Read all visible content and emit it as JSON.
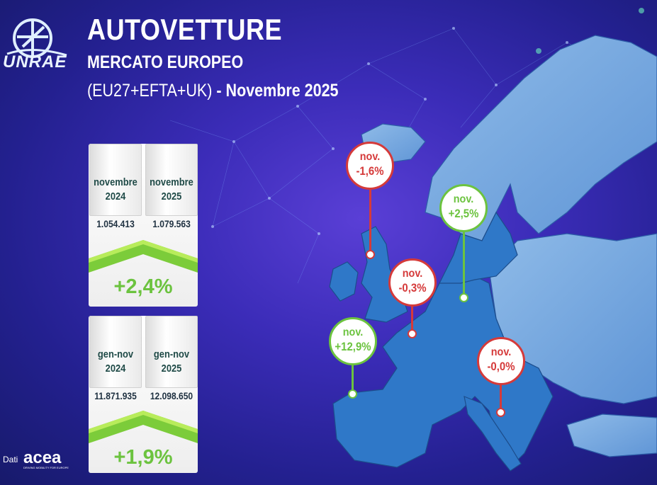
{
  "header": {
    "title": "AUTOVETTURE",
    "subtitle": "MERCATO EUROPEO",
    "scope": "(EU27+EFTA+UK)",
    "separator": " - ",
    "period": "Novembre 2025"
  },
  "logo": {
    "text": "UNRAE"
  },
  "monthly": {
    "col1_label_line1": "novembre",
    "col1_label_line2": "2024",
    "col1_value": "1.054.413",
    "col2_label_line1": "novembre",
    "col2_label_line2": "2025",
    "col2_value": "1.079.563",
    "change": "+2,4%",
    "change_value": 2.4
  },
  "ytd": {
    "col1_label_line1": "gen-nov",
    "col1_label_line2": "2024",
    "col1_value": "11.871.935",
    "col2_label_line1": "gen-nov",
    "col2_label_line2": "2025",
    "col2_value": "12.098.650",
    "change": "+1,9%",
    "change_value": 1.9
  },
  "markers": {
    "uk": {
      "label": "nov.",
      "value": "-1,6%",
      "status": "negative"
    },
    "germany": {
      "label": "nov.",
      "value": "+2,5%",
      "status": "positive"
    },
    "france": {
      "label": "nov.",
      "value": "-0,3%",
      "status": "negative"
    },
    "spain": {
      "label": "nov.",
      "value": "+12,9%",
      "status": "positive"
    },
    "italy": {
      "label": "nov.",
      "value": "-0,0%",
      "status": "negative"
    }
  },
  "source": {
    "label": "Dati",
    "brand": "acea",
    "brand_tagline": "DRIVING MOBILITY FOR EUROPE"
  },
  "colors": {
    "positive": "#6cc33f",
    "negative": "#d53a3a",
    "background": "#3b2cb8",
    "map": "#2f78c8"
  }
}
